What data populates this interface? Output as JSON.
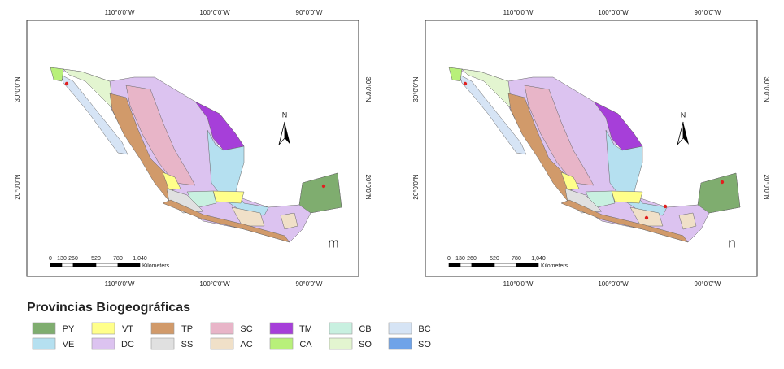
{
  "panels": [
    {
      "letter": "m",
      "top_labels": [
        "110°0'0\"W",
        "100°0'0\"W",
        "90°0'0\"W"
      ],
      "bottom_labels": [
        "110°0'0\"W",
        "100°0'0\"W",
        "90°0'0\"W"
      ],
      "left_labels": [
        "30°0'0\"N",
        "20°0'0\"N"
      ],
      "right_labels": [
        "30°0'0\"N",
        "20°0'0\"N"
      ],
      "scale_labels": [
        "0",
        "130",
        "260",
        "520",
        "780",
        "1,040"
      ],
      "scale_unit": "Kilometers",
      "north": "N"
    },
    {
      "letter": "n",
      "top_labels": [
        "110°0'0\"W",
        "100°0'0\"W",
        "90°0'0\"W"
      ],
      "bottom_labels": [
        "110°0'0\"W",
        "100°0'0\"W",
        "90°0'0\"W"
      ],
      "left_labels": [
        "30°0'0\"N",
        "20°0'0\"N"
      ],
      "right_labels": [
        "30°0'0\"N",
        "20°0'0\"N"
      ],
      "scale_labels": [
        "0",
        "130",
        "260",
        "520",
        "780",
        "1,040"
      ],
      "scale_unit": "Kilometers",
      "north": "N"
    }
  ],
  "legend": {
    "title": "Provincias Biogeográficas",
    "items": [
      {
        "label": "PY",
        "color": "#7fad6f"
      },
      {
        "label": "VT",
        "color": "#ffff8a"
      },
      {
        "label": "TP",
        "color": "#d19a6a"
      },
      {
        "label": "SC",
        "color": "#e8b5c8"
      },
      {
        "label": "TM",
        "color": "#a63fd9"
      },
      {
        "label": "CB",
        "color": "#c8f0e0"
      },
      {
        "label": "BC",
        "color": "#d6e4f5"
      },
      {
        "label": "VE",
        "color": "#b5e0f0"
      },
      {
        "label": "DC",
        "color": "#dcc3f0"
      },
      {
        "label": "SS",
        "color": "#e0e0e0"
      },
      {
        "label": "AC",
        "color": "#f0e0c8"
      },
      {
        "label": "CA",
        "color": "#b8f07a"
      },
      {
        "label": "SO",
        "color": "#e3f5d0"
      },
      {
        "label": "SO",
        "color": "#6fa3e8"
      }
    ]
  }
}
